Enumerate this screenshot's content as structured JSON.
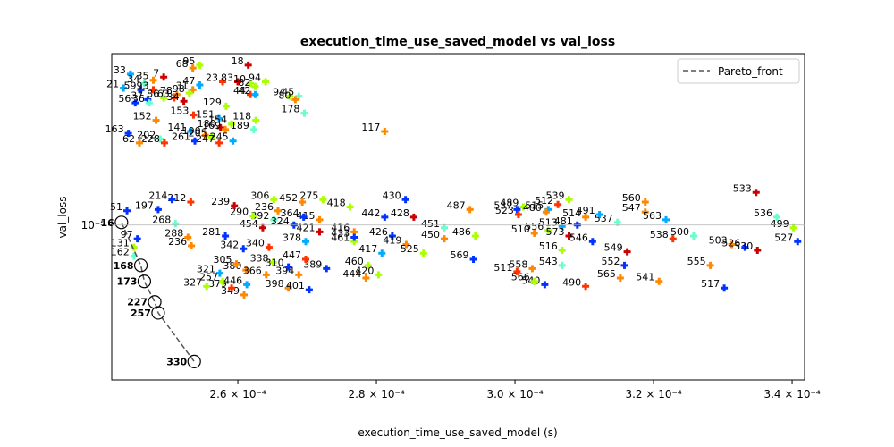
{
  "chart_data": {
    "type": "scatter",
    "title": "execution_time_use_saved_model vs val_loss",
    "xlabel": "execution_time_use_saved_model (s)",
    "ylabel": "val_loss",
    "x_scale": "linear",
    "y_scale": "log",
    "xlim": [
      0.0002418,
      0.0003418
    ],
    "ylim": [
      5.6e-06,
      1.9e-05
    ],
    "x_ticks": [
      {
        "value": 0.00026,
        "label": "2.6 × 10⁻⁴"
      },
      {
        "value": 0.00028,
        "label": "2.8 × 10⁻⁴"
      },
      {
        "value": 0.0003,
        "label": "3.0 × 10⁻⁴"
      },
      {
        "value": 0.00032,
        "label": "3.2 × 10⁻⁴"
      },
      {
        "value": 0.00034,
        "label": "3.4 × 10⁻⁴"
      }
    ],
    "y_ticks": [
      {
        "value": 1e-05,
        "label": "10⁻⁵"
      }
    ],
    "grid": "horizontal line at 10^-5",
    "legend": {
      "position": "top-right",
      "entries": [
        {
          "label": "Pareto_front",
          "style": "dashed"
        }
      ]
    },
    "pareto_front": [
      {
        "label": "16",
        "x": 0.0002432,
        "y": 1.01e-05
      },
      {
        "label": "168",
        "x": 0.000246,
        "y": 8.6e-06
      },
      {
        "label": "173",
        "x": 0.0002465,
        "y": 8.1e-06
      },
      {
        "label": "227",
        "x": 0.000248,
        "y": 7.5e-06
      },
      {
        "label": "257",
        "x": 0.0002485,
        "y": 7.2e-06
      },
      {
        "label": "330",
        "x": 0.0002537,
        "y": 6e-06
      }
    ],
    "points": [
      {
        "label": "33",
        "x": 0.0002445,
        "y": 1.76e-05,
        "color": "#00aaff"
      },
      {
        "label": "7",
        "x": 0.0002493,
        "y": 1.74e-05,
        "color": "#cc0000"
      },
      {
        "label": "68",
        "x": 0.0002535,
        "y": 1.8e-05,
        "color": "#ff8800"
      },
      {
        "label": "95",
        "x": 0.0002545,
        "y": 1.82e-05,
        "color": "#aaff00"
      },
      {
        "label": "18",
        "x": 0.0002615,
        "y": 1.82e-05,
        "color": "#cc0000"
      },
      {
        "label": "35",
        "x": 0.0002478,
        "y": 1.72e-05,
        "color": "#ff8800"
      },
      {
        "label": "34",
        "x": 0.0002465,
        "y": 1.7e-05,
        "color": "#66ffcc"
      },
      {
        "label": "23",
        "x": 0.0002578,
        "y": 1.71e-05,
        "color": "#ff3300"
      },
      {
        "label": "83",
        "x": 0.00026,
        "y": 1.71e-05,
        "color": "#cc0000"
      },
      {
        "label": "10",
        "x": 0.0002618,
        "y": 1.7e-05,
        "color": "#aaff00"
      },
      {
        "label": "94",
        "x": 0.000264,
        "y": 1.71e-05,
        "color": "#aaff00"
      },
      {
        "label": "47",
        "x": 0.0002545,
        "y": 1.69e-05,
        "color": "#00aaff"
      },
      {
        "label": "82",
        "x": 0.0002625,
        "y": 1.68e-05,
        "color": "#aaff00"
      },
      {
        "label": "21",
        "x": 0.0002435,
        "y": 1.67e-05,
        "color": "#00aaff"
      },
      {
        "label": "59",
        "x": 0.000246,
        "y": 1.66e-05,
        "color": "#0033ff"
      },
      {
        "label": "93",
        "x": 0.0002478,
        "y": 1.66e-05,
        "color": "#ff3300"
      },
      {
        "label": "31",
        "x": 0.0002535,
        "y": 1.66e-05,
        "color": "#ff8800"
      },
      {
        "label": "44",
        "x": 0.0002618,
        "y": 1.63e-05,
        "color": "#ff3300"
      },
      {
        "label": "42",
        "x": 0.0002625,
        "y": 1.63e-05,
        "color": "#00aaff"
      },
      {
        "label": "94",
        "x": 0.0002675,
        "y": 1.62e-05,
        "color": "#aaff00"
      },
      {
        "label": "45",
        "x": 0.0002688,
        "y": 1.62e-05,
        "color": "#66ffcc"
      },
      {
        "label": "80",
        "x": 0.0002683,
        "y": 1.6e-05,
        "color": "#ff8800"
      },
      {
        "label": "78",
        "x": 0.0002512,
        "y": 1.63e-05,
        "color": "#ff8800"
      },
      {
        "label": "98",
        "x": 0.000253,
        "y": 1.64e-05,
        "color": "#aaff00"
      },
      {
        "label": "37",
        "x": 0.000247,
        "y": 1.6e-05,
        "color": "#0033ff"
      },
      {
        "label": "86",
        "x": 0.0002493,
        "y": 1.61e-05,
        "color": "#aaff00"
      },
      {
        "label": "63",
        "x": 0.0002508,
        "y": 1.61e-05,
        "color": "#ff3300"
      },
      {
        "label": "56",
        "x": 0.0002452,
        "y": 1.58e-05,
        "color": "#0033ff"
      },
      {
        "label": "36",
        "x": 0.0002472,
        "y": 1.58e-05,
        "color": "#66ffcc"
      },
      {
        "label": "34",
        "x": 0.0002522,
        "y": 1.59e-05,
        "color": "#cc0000"
      },
      {
        "label": "129",
        "x": 0.0002583,
        "y": 1.56e-05,
        "color": "#aaff00"
      },
      {
        "label": "178",
        "x": 0.0002696,
        "y": 1.52e-05,
        "color": "#66ffcc"
      },
      {
        "label": "153",
        "x": 0.0002536,
        "y": 1.51e-05,
        "color": "#ff3300"
      },
      {
        "label": "151",
        "x": 0.0002573,
        "y": 1.49e-05,
        "color": "#00aaff"
      },
      {
        "label": "118",
        "x": 0.0002626,
        "y": 1.48e-05,
        "color": "#aaff00"
      },
      {
        "label": "152",
        "x": 0.0002482,
        "y": 1.48e-05,
        "color": "#ff8800"
      },
      {
        "label": "154",
        "x": 0.0002591,
        "y": 1.46e-05,
        "color": "#aaff00"
      },
      {
        "label": "180",
        "x": 0.0002575,
        "y": 1.44e-05,
        "color": "#cc0000"
      },
      {
        "label": "189",
        "x": 0.0002623,
        "y": 1.43e-05,
        "color": "#66ffcc"
      },
      {
        "label": "169",
        "x": 0.0002582,
        "y": 1.43e-05,
        "color": "#ff8800"
      },
      {
        "label": "141",
        "x": 0.0002532,
        "y": 1.42e-05,
        "color": "#00aaff"
      },
      {
        "label": "163",
        "x": 0.0002442,
        "y": 1.41e-05,
        "color": "#0033ff"
      },
      {
        "label": "117",
        "x": 0.0002812,
        "y": 1.42e-05,
        "color": "#ff8800"
      },
      {
        "label": "190",
        "x": 0.0002553,
        "y": 1.4e-05,
        "color": "#ff8800"
      },
      {
        "label": "205",
        "x": 0.0002562,
        "y": 1.39e-05,
        "color": "#aaff00"
      },
      {
        "label": "202",
        "x": 0.0002488,
        "y": 1.38e-05,
        "color": "#66ffcc"
      },
      {
        "label": "245",
        "x": 0.0002593,
        "y": 1.37e-05,
        "color": "#00aaff"
      },
      {
        "label": "247",
        "x": 0.0002573,
        "y": 1.36e-05,
        "color": "#ff3300"
      },
      {
        "label": "228",
        "x": 0.0002494,
        "y": 1.36e-05,
        "color": "#ff3300"
      },
      {
        "label": "261",
        "x": 0.0002538,
        "y": 1.37e-05,
        "color": "#0033ff"
      },
      {
        "label": "62",
        "x": 0.0002458,
        "y": 1.36e-05,
        "color": "#ff8800"
      },
      {
        "label": "533",
        "x": 0.0003348,
        "y": 1.13e-05,
        "color": "#cc0000"
      },
      {
        "label": "430",
        "x": 0.0002842,
        "y": 1.1e-05,
        "color": "#0033ff"
      },
      {
        "label": "539",
        "x": 0.0003078,
        "y": 1.1e-05,
        "color": "#aaff00"
      },
      {
        "label": "560",
        "x": 0.0003188,
        "y": 1.09e-05,
        "color": "#ff8800"
      },
      {
        "label": "306",
        "x": 0.0002652,
        "y": 1.1e-05,
        "color": "#aaff00"
      },
      {
        "label": "275",
        "x": 0.0002723,
        "y": 1.1e-05,
        "color": "#aaff00"
      },
      {
        "label": "452",
        "x": 0.0002693,
        "y": 1.09e-05,
        "color": "#ff8800"
      },
      {
        "label": "512",
        "x": 0.0003062,
        "y": 1.08e-05,
        "color": "#ff3300"
      },
      {
        "label": "418",
        "x": 0.0002762,
        "y": 1.07e-05,
        "color": "#aaff00"
      },
      {
        "label": "489",
        "x": 0.0003012,
        "y": 1.07e-05,
        "color": "#aaff00"
      },
      {
        "label": "515",
        "x": 0.0003048,
        "y": 1.06e-05,
        "color": "#00aaff"
      },
      {
        "label": "487",
        "x": 0.0002935,
        "y": 1.06e-05,
        "color": "#ff8800"
      },
      {
        "label": "537",
        "x": 0.0003003,
        "y": 1.06e-05,
        "color": "#0033ff"
      },
      {
        "label": "480",
        "x": 0.0003045,
        "y": 1.05e-05,
        "color": "#ff8800"
      },
      {
        "label": "547",
        "x": 0.0003188,
        "y": 1.05e-05,
        "color": "#ff8800"
      },
      {
        "label": "523",
        "x": 0.0003005,
        "y": 1.04e-05,
        "color": "#ff3300"
      },
      {
        "label": "491",
        "x": 0.0003122,
        "y": 1.04e-05,
        "color": "#00aaff"
      },
      {
        "label": "514",
        "x": 0.0003102,
        "y": 1.03e-05,
        "color": "#ff8800"
      },
      {
        "label": "442",
        "x": 0.0002812,
        "y": 1.03e-05,
        "color": "#0033ff"
      },
      {
        "label": "428",
        "x": 0.0002854,
        "y": 1.03e-05,
        "color": "#cc0000"
      },
      {
        "label": "536",
        "x": 0.0003378,
        "y": 1.03e-05,
        "color": "#66ffcc"
      },
      {
        "label": "563",
        "x": 0.0003218,
        "y": 1.02e-05,
        "color": "#00aaff"
      },
      {
        "label": "537",
        "x": 0.0003148,
        "y": 1.01e-05,
        "color": "#66ffcc"
      },
      {
        "label": "499",
        "x": 0.0003402,
        "y": 9.9e-06,
        "color": "#aaff00"
      },
      {
        "label": "451",
        "x": 0.0002898,
        "y": 9.9e-06,
        "color": "#66ffcc"
      },
      {
        "label": "513",
        "x": 0.0003068,
        "y": 9.95e-06,
        "color": "#00aaff"
      },
      {
        "label": "481",
        "x": 0.000309,
        "y": 1e-05,
        "color": "#0033ff"
      },
      {
        "label": "556",
        "x": 0.0003048,
        "y": 9.8e-06,
        "color": "#aaff00"
      },
      {
        "label": "510",
        "x": 0.0003028,
        "y": 9.7e-06,
        "color": "#ff8800"
      },
      {
        "label": "426",
        "x": 0.0002823,
        "y": 9.6e-06,
        "color": "#0033ff"
      },
      {
        "label": "486",
        "x": 0.0002943,
        "y": 9.6e-06,
        "color": "#aaff00"
      },
      {
        "label": "500",
        "x": 0.0003258,
        "y": 9.6e-06,
        "color": "#66ffcc"
      },
      {
        "label": "450",
        "x": 0.0002898,
        "y": 9.5e-06,
        "color": "#ff8800"
      },
      {
        "label": "573",
        "x": 0.0003078,
        "y": 9.6e-06,
        "color": "#cc0000"
      },
      {
        "label": "538",
        "x": 0.0003228,
        "y": 9.5e-06,
        "color": "#ff3300"
      },
      {
        "label": "419",
        "x": 0.0002843,
        "y": 9.3e-06,
        "color": "#ff8800"
      },
      {
        "label": "527",
        "x": 0.0003408,
        "y": 9.4e-06,
        "color": "#0033ff"
      },
      {
        "label": "503",
        "x": 0.0003313,
        "y": 9.3e-06,
        "color": "#ff8800"
      },
      {
        "label": "526",
        "x": 0.0003332,
        "y": 9.2e-06,
        "color": "#0033ff"
      },
      {
        "label": "530",
        "x": 0.000335,
        "y": 9.1e-06,
        "color": "#cc0000"
      },
      {
        "label": "525",
        "x": 0.0002868,
        "y": 9e-06,
        "color": "#aaff00"
      },
      {
        "label": "417",
        "x": 0.0002808,
        "y": 9e-06,
        "color": "#00aaff"
      },
      {
        "label": "461",
        "x": 0.0002768,
        "y": 9.4e-06,
        "color": "#aaff00"
      },
      {
        "label": "416",
        "x": 0.0002768,
        "y": 9.75e-06,
        "color": "#ff8800"
      },
      {
        "label": "433",
        "x": 0.0002768,
        "y": 9.55e-06,
        "color": "#0033ff"
      },
      {
        "label": "516",
        "x": 0.0003068,
        "y": 9.1e-06,
        "color": "#aaff00"
      },
      {
        "label": "546",
        "x": 0.0003112,
        "y": 9.4e-06,
        "color": "#0033ff"
      },
      {
        "label": "549",
        "x": 0.0003162,
        "y": 9.05e-06,
        "color": "#cc0000"
      },
      {
        "label": "569",
        "x": 0.000294,
        "y": 8.8e-06,
        "color": "#0033ff"
      },
      {
        "label": "460",
        "x": 0.0002788,
        "y": 8.6e-06,
        "color": "#aaff00"
      },
      {
        "label": "555",
        "x": 0.0003282,
        "y": 8.6e-06,
        "color": "#ff8800"
      },
      {
        "label": "552",
        "x": 0.0003158,
        "y": 8.6e-06,
        "color": "#0033ff"
      },
      {
        "label": "543",
        "x": 0.0003068,
        "y": 8.6e-06,
        "color": "#66ffcc"
      },
      {
        "label": "558",
        "x": 0.0003025,
        "y": 8.5e-06,
        "color": "#ff8800"
      },
      {
        "label": "511",
        "x": 0.0003003,
        "y": 8.4e-06,
        "color": "#ff3300"
      },
      {
        "label": "420",
        "x": 0.0002803,
        "y": 8.3e-06,
        "color": "#aaff00"
      },
      {
        "label": "444",
        "x": 0.0002785,
        "y": 8.2e-06,
        "color": "#ff8800"
      },
      {
        "label": "565",
        "x": 0.0003152,
        "y": 8.2e-06,
        "color": "#ff8800"
      },
      {
        "label": "541",
        "x": 0.0003208,
        "y": 8.1e-06,
        "color": "#ff8800"
      },
      {
        "label": "540",
        "x": 0.0003043,
        "y": 8e-06,
        "color": "#0033ff"
      },
      {
        "label": "566",
        "x": 0.0003028,
        "y": 8.1e-06,
        "color": "#aaff00"
      },
      {
        "label": "490",
        "x": 0.0003102,
        "y": 7.95e-06,
        "color": "#ff3300"
      },
      {
        "label": "517",
        "x": 0.0003302,
        "y": 7.9e-06,
        "color": "#0033ff"
      },
      {
        "label": "389",
        "x": 0.0002728,
        "y": 8.5e-06,
        "color": "#0033ff"
      },
      {
        "label": "398",
        "x": 0.0002673,
        "y": 7.9e-06,
        "color": "#ff8800"
      },
      {
        "label": "401",
        "x": 0.0002703,
        "y": 7.85e-06,
        "color": "#0033ff"
      },
      {
        "label": "349",
        "x": 0.0002609,
        "y": 7.7e-06,
        "color": "#ff8800"
      },
      {
        "label": "379",
        "x": 0.0002591,
        "y": 7.9e-06,
        "color": "#ff3300"
      },
      {
        "label": "327",
        "x": 0.0002555,
        "y": 7.95e-06,
        "color": "#aaff00"
      },
      {
        "label": "447",
        "x": 0.0002698,
        "y": 8.8e-06,
        "color": "#ff3300"
      },
      {
        "label": "392",
        "x": 0.0002652,
        "y": 1.02e-05,
        "color": "#66ffcc"
      },
      {
        "label": "415",
        "x": 0.0002718,
        "y": 1.02e-05,
        "color": "#ff8800"
      },
      {
        "label": "378",
        "x": 0.0002698,
        "y": 9.4e-06,
        "color": "#00aaff"
      },
      {
        "label": "338",
        "x": 0.0002651,
        "y": 8.7e-06,
        "color": "#aaff00"
      },
      {
        "label": "281",
        "x": 0.0002582,
        "y": 9.6e-06,
        "color": "#0033ff"
      },
      {
        "label": "212",
        "x": 0.0002532,
        "y": 1.09e-05,
        "color": "#ff3300"
      },
      {
        "label": "197",
        "x": 0.0002485,
        "y": 1.06e-05,
        "color": "#0033ff"
      },
      {
        "label": "97",
        "x": 0.0002455,
        "y": 9.5e-06,
        "color": "#0033ff"
      },
      {
        "label": "51",
        "x": 0.000244,
        "y": 1.055e-05,
        "color": "#0033ff"
      },
      {
        "label": "131",
        "x": 0.000245,
        "y": 9.2e-06,
        "color": "#aaff00"
      },
      {
        "label": "162",
        "x": 0.000245,
        "y": 8.9e-06,
        "color": "#66ffcc"
      },
      {
        "label": "236",
        "x": 0.0002658,
        "y": 1.055e-05,
        "color": "#ff8800"
      },
      {
        "label": "364",
        "x": 0.0002695,
        "y": 1.03e-05,
        "color": "#0033ff"
      },
      {
        "label": "236",
        "x": 0.0002533,
        "y": 9.25e-06,
        "color": "#ff8800"
      },
      {
        "label": "421",
        "x": 0.0002718,
        "y": 9.75e-06,
        "color": "#cc0000"
      },
      {
        "label": "394",
        "x": 0.0002688,
        "y": 8.3e-06,
        "color": "#ff8800"
      },
      {
        "label": "380",
        "x": 0.0002612,
        "y": 8.45e-06,
        "color": "#ff8800"
      },
      {
        "label": "321",
        "x": 0.0002574,
        "y": 8.35e-06,
        "color": "#00aaff"
      },
      {
        "label": "310",
        "x": 0.0002673,
        "y": 8.55e-06,
        "color": "#0033ff"
      },
      {
        "label": "454",
        "x": 0.0002636,
        "y": 9.9e-06,
        "color": "#cc0000"
      },
      {
        "label": "290",
        "x": 0.0002622,
        "y": 1.035e-05,
        "color": "#aaff00"
      },
      {
        "label": "324",
        "x": 0.0002681,
        "y": 1e-05,
        "color": "#0033ff"
      },
      {
        "label": "340",
        "x": 0.0002645,
        "y": 9.2e-06,
        "color": "#ff3300"
      },
      {
        "label": "239",
        "x": 0.0002595,
        "y": 1.075e-05,
        "color": "#cc0000"
      },
      {
        "label": "268",
        "x": 0.000251,
        "y": 1.005e-05,
        "color": "#66ffcc"
      },
      {
        "label": "288",
        "x": 0.0002528,
        "y": 9.55e-06,
        "color": "#ff8800"
      },
      {
        "label": "214",
        "x": 0.0002505,
        "y": 1.1e-05,
        "color": "#0033ff"
      },
      {
        "label": "257",
        "x": 0.0002578,
        "y": 8.1e-06,
        "color": "#aaff00"
      },
      {
        "label": "305",
        "x": 0.0002598,
        "y": 8.65e-06,
        "color": "#ff8800"
      },
      {
        "label": "366",
        "x": 0.0002641,
        "y": 8.3e-06,
        "color": "#ff8800"
      },
      {
        "label": "342",
        "x": 0.0002608,
        "y": 9.15e-06,
        "color": "#0033ff"
      },
      {
        "label": "446",
        "x": 0.0002613,
        "y": 8e-06,
        "color": "#00aaff"
      }
    ]
  }
}
